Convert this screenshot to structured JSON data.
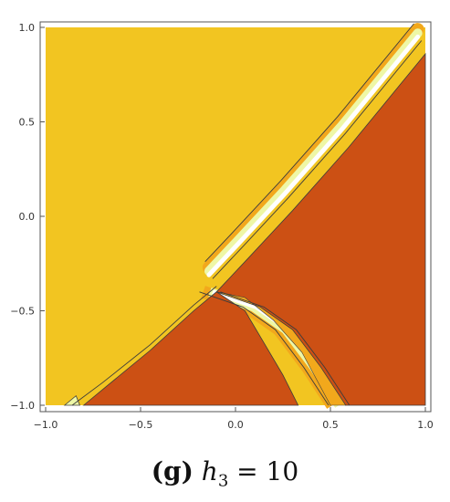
{
  "chart_data": {
    "type": "heatmap",
    "title": "",
    "xlabel": "",
    "ylabel": "",
    "xlim": [
      -1.0,
      1.0
    ],
    "ylim": [
      -1.0,
      1.0
    ],
    "x_ticks": [
      "−1.0",
      "−0.5",
      "0.0",
      "0.5",
      "1.0"
    ],
    "y_ticks": [
      "1.0",
      "0.5",
      "0.0",
      "−0.5",
      "−1.0"
    ],
    "grid": false,
    "legend": "none",
    "colors": {
      "high_region": "#f2c521",
      "low_region": "#cc5014",
      "band_orange": "#f2a81c",
      "band_pale": "#eef7a6",
      "band_white": "#ffffff",
      "contour": "#3c3c3c"
    },
    "regions": [
      {
        "name": "upper-left region",
        "color": "high_region"
      },
      {
        "name": "right wedge",
        "color": "low_region",
        "vertices": [
          [
            -0.1,
            -0.4
          ],
          [
            0.05,
            -0.24
          ],
          [
            0.3,
            0.03
          ],
          [
            0.6,
            0.37
          ],
          [
            1.0,
            0.86
          ],
          [
            1.0,
            -1.0
          ],
          [
            0.58,
            -1.0
          ],
          [
            0.45,
            -0.8
          ],
          [
            0.3,
            -0.6
          ],
          [
            0.13,
            -0.48
          ]
        ]
      },
      {
        "name": "lower-left wedge",
        "color": "low_region",
        "vertices": [
          [
            -0.8,
            -1.0
          ],
          [
            -0.68,
            -0.9
          ],
          [
            -0.45,
            -0.71
          ],
          [
            -0.22,
            -0.5
          ],
          [
            -0.1,
            -0.4
          ],
          [
            0.05,
            -0.5
          ],
          [
            0.15,
            -0.67
          ],
          [
            0.25,
            -0.84
          ],
          [
            0.33,
            -1.0
          ]
        ]
      }
    ]
  },
  "caption": {
    "tag": "(g)",
    "variable": "h",
    "subscript": "3",
    "equals": " = ",
    "value": "10"
  }
}
